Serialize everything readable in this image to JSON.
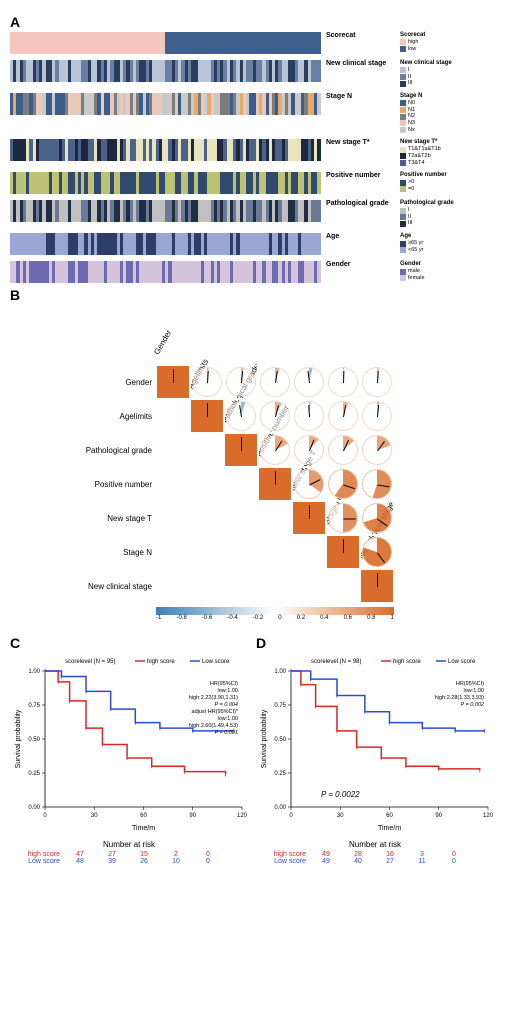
{
  "panelA": {
    "label": "A",
    "n_samples": 96,
    "tracks": [
      {
        "name": "Scorecat",
        "legend_title": "Scorecat",
        "categories": [
          {
            "label": "high",
            "color": "#f5c6be"
          },
          {
            "label": "low",
            "color": "#3f5f8c"
          }
        ],
        "pattern": "half"
      },
      {
        "name": "New clinical stage",
        "legend_title": "New clinical stage",
        "categories": [
          {
            "label": "I",
            "color": "#b7c5d6"
          },
          {
            "label": "II",
            "color": "#6a7fa3"
          },
          {
            "label": "III",
            "color": "#2b3d5c"
          }
        ],
        "pattern": "random3"
      },
      {
        "name": "Stage N",
        "legend_title": "Stage N",
        "categories": [
          {
            "label": "N0",
            "color": "#3a5e8c"
          },
          {
            "label": "N1",
            "color": "#e8a86a"
          },
          {
            "label": "N2",
            "color": "#7d7d7d"
          },
          {
            "label": "N3",
            "color": "#e8c9bb"
          },
          {
            "label": "Nx",
            "color": "#c9c9c9"
          }
        ],
        "pattern": "random5"
      },
      {
        "name": "New stage T*",
        "legend_title": "New stage T*",
        "categories": [
          {
            "label": "T1&T1a&T1b",
            "color": "#e8e4be"
          },
          {
            "label": "T2a&T2b",
            "color": "#1d2740"
          },
          {
            "label": "T3&T4",
            "color": "#4b6388"
          }
        ],
        "pattern": "random3b"
      },
      {
        "name": "Positive number",
        "legend_title": "Positive number",
        "categories": [
          {
            "label": ">0",
            "color": "#2f4a6e"
          },
          {
            "label": "=0",
            "color": "#bcc474"
          }
        ],
        "pattern": "random2"
      },
      {
        "name": "Pathological grade",
        "legend_title": "Pathological grade",
        "categories": [
          {
            "label": "I",
            "color": "#c0c0c0"
          },
          {
            "label": "II",
            "color": "#6b7a94"
          },
          {
            "label": "III",
            "color": "#1f2d45"
          }
        ],
        "pattern": "random3c"
      },
      {
        "name": "Age",
        "legend_title": "Age",
        "categories": [
          {
            "label": "≥65 yr",
            "color": "#2d3d6a"
          },
          {
            "label": "<65 yr",
            "color": "#9aa7d4"
          }
        ],
        "pattern": "random2b"
      },
      {
        "name": "Gender",
        "legend_title": "Gender",
        "categories": [
          {
            "label": "male",
            "color": "#6d6ab0"
          },
          {
            "label": "female",
            "color": "#d4c4dc"
          }
        ],
        "pattern": "random2c"
      }
    ]
  },
  "panelB": {
    "label": "B",
    "vars": [
      "Gender",
      "Agelimits",
      "Pathological grade",
      "Positive number",
      "New stage T",
      "Stage N",
      "New clinical stage"
    ],
    "matrix": [
      [
        1.0,
        0.02,
        0.03,
        0.05,
        -0.04,
        0.01,
        0.02
      ],
      [
        0.02,
        1.0,
        -0.05,
        0.08,
        -0.02,
        0.06,
        0.03
      ],
      [
        0.03,
        -0.05,
        1.0,
        0.18,
        0.12,
        0.14,
        0.2
      ],
      [
        0.05,
        0.08,
        0.18,
        1.0,
        0.35,
        0.6,
        0.55
      ],
      [
        -0.04,
        -0.02,
        0.12,
        0.35,
        1.0,
        0.5,
        0.7
      ],
      [
        0.01,
        0.06,
        0.14,
        0.6,
        0.5,
        1.0,
        0.8
      ],
      [
        0.02,
        0.03,
        0.2,
        0.55,
        0.7,
        0.8,
        1.0
      ]
    ],
    "pos_color": "#d96c2a",
    "neg_color": "#3b7fb5",
    "scale_ticks": [
      "-1",
      "-0.8",
      "-0.6",
      "-0.4",
      "-0.2",
      "0",
      "0.2",
      "0.4",
      "0.6",
      "0.8",
      "1"
    ]
  },
  "panelC": {
    "label": "C",
    "title": "scorelevel",
    "n": 95,
    "legend": [
      {
        "label": "high score",
        "color": "#d6282a"
      },
      {
        "label": "Low score",
        "color": "#2a4bd6"
      }
    ],
    "hr_lines": [
      "HR(95%CI)",
      "low:1.00",
      "high:2.22(3.90,1.31)",
      "P = 0.004",
      "adjust HR(95%CI)*",
      "low:1.00",
      "high:2.60(1.49,4.53)",
      "P = 0.001"
    ],
    "x_label": "Time/m",
    "y_label": "Survival probability",
    "x_ticks": [
      0,
      30,
      60,
      90,
      120
    ],
    "y_ticks": [
      "0.00",
      "0.25",
      "0.50",
      "0.75",
      "1.00"
    ],
    "high_curve": [
      [
        0,
        1.0
      ],
      [
        8,
        0.92
      ],
      [
        15,
        0.78
      ],
      [
        25,
        0.58
      ],
      [
        35,
        0.46
      ],
      [
        50,
        0.36
      ],
      [
        65,
        0.3
      ],
      [
        85,
        0.26
      ],
      [
        110,
        0.24
      ]
    ],
    "low_curve": [
      [
        0,
        1.0
      ],
      [
        10,
        0.96
      ],
      [
        25,
        0.85
      ],
      [
        40,
        0.72
      ],
      [
        55,
        0.62
      ],
      [
        70,
        0.58
      ],
      [
        90,
        0.56
      ],
      [
        115,
        0.56
      ]
    ],
    "risk_title": "Number at risk",
    "risk_high": {
      "label": "high score",
      "values": [
        47,
        27,
        15,
        2,
        0
      ],
      "color": "#d6282a"
    },
    "risk_low": {
      "label": "Low score",
      "values": [
        48,
        39,
        26,
        10,
        0
      ],
      "color": "#2a4bd6"
    }
  },
  "panelD": {
    "label": "D",
    "title": "scorelevel",
    "n": 98,
    "legend": [
      {
        "label": "high score",
        "color": "#d6282a"
      },
      {
        "label": "Low score",
        "color": "#2a4bd6"
      }
    ],
    "hr_lines": [
      "HR(95%CI)",
      "low:1.00",
      "high:2.28(1.33,3.93)",
      "P = 0.002"
    ],
    "p_inline": "P = 0.0022",
    "x_label": "Time/m",
    "y_label": "Survival probability",
    "x_ticks": [
      0,
      30,
      60,
      90,
      120
    ],
    "y_ticks": [
      "0.00",
      "0.25",
      "0.50",
      "0.75",
      "1.00"
    ],
    "high_curve": [
      [
        0,
        1.0
      ],
      [
        6,
        0.9
      ],
      [
        15,
        0.74
      ],
      [
        28,
        0.56
      ],
      [
        40,
        0.44
      ],
      [
        55,
        0.36
      ],
      [
        70,
        0.3
      ],
      [
        90,
        0.28
      ],
      [
        115,
        0.27
      ]
    ],
    "low_curve": [
      [
        0,
        1.0
      ],
      [
        12,
        0.94
      ],
      [
        28,
        0.82
      ],
      [
        45,
        0.7
      ],
      [
        60,
        0.62
      ],
      [
        80,
        0.58
      ],
      [
        100,
        0.56
      ],
      [
        118,
        0.56
      ]
    ],
    "risk_title": "Number at risk",
    "risk_high": {
      "label": "high score",
      "values": [
        49,
        28,
        16,
        3,
        0
      ],
      "color": "#d6282a"
    },
    "risk_low": {
      "label": "Low score",
      "values": [
        49,
        40,
        27,
        11,
        0
      ],
      "color": "#2a4bd6"
    }
  }
}
